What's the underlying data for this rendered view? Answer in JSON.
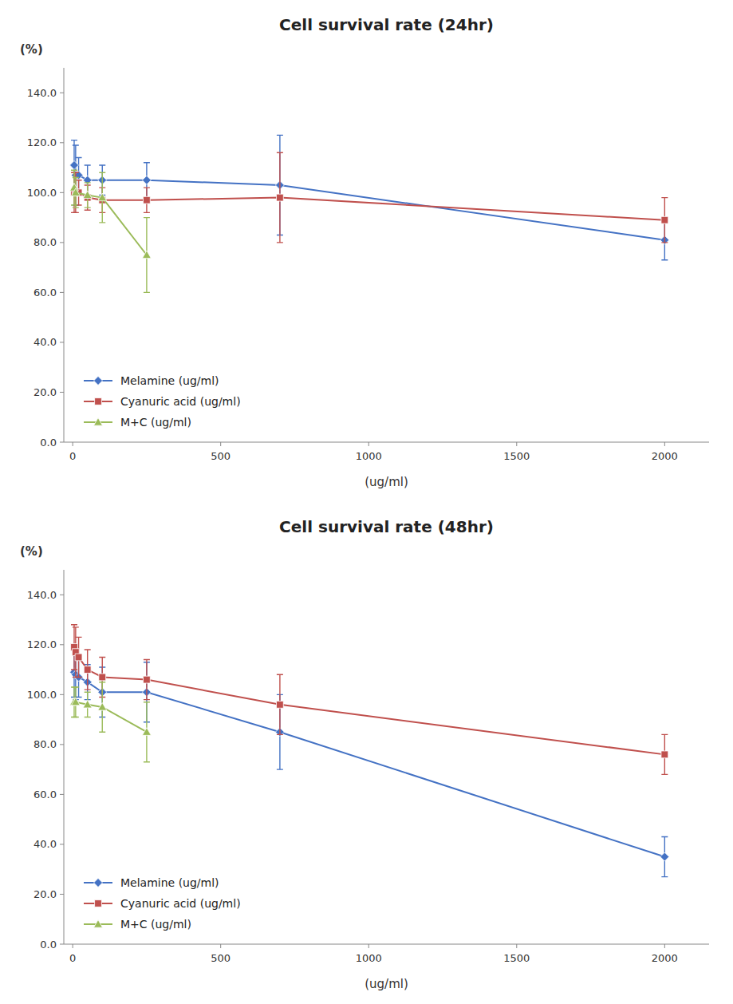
{
  "chart_data": [
    {
      "type": "line",
      "title": "Cell survival rate (24hr)",
      "xlabel": "(ug/ml)",
      "ylabel": "(%)",
      "xlim": [
        -30,
        2150
      ],
      "xticks": [
        0,
        500,
        1000,
        1500,
        2000
      ],
      "ylim": [
        0,
        150
      ],
      "yticks": [
        {
          "value": 0.0,
          "label": "0.0"
        },
        {
          "value": 20.0,
          "label": "20.0"
        },
        {
          "value": 40.0,
          "label": "40.0"
        },
        {
          "value": 60.0,
          "label": "60.0"
        },
        {
          "value": 80.0,
          "label": "80.0"
        },
        {
          "value": 100.0,
          "label": "100.0"
        },
        {
          "value": 120.0,
          "label": "120.0"
        },
        {
          "value": 140.0,
          "label": "140.0"
        }
      ],
      "grid": false,
      "legend": "lower left",
      "series": [
        {
          "name": "Melamine (ug/ml)",
          "color": "#4472C4",
          "marker": "diamond",
          "x": [
            5,
            10,
            20,
            50,
            100,
            250,
            700,
            2000
          ],
          "values": [
            111,
            107,
            107,
            105,
            105,
            105,
            103,
            81
          ],
          "errors": [
            10,
            12,
            7,
            6,
            6,
            7,
            20,
            8
          ]
        },
        {
          "name": "Cyanuric acid (ug/ml)",
          "color": "#C0504D",
          "marker": "square",
          "x": [
            5,
            10,
            20,
            50,
            100,
            250,
            700,
            2000
          ],
          "values": [
            100,
            100,
            100,
            98,
            97,
            97,
            98,
            89
          ],
          "errors": [
            8,
            8,
            5,
            5,
            5,
            5,
            18,
            9
          ]
        },
        {
          "name": "M+C (ug/ml)",
          "color": "#9BBB59",
          "marker": "triangle",
          "x": [
            5,
            10,
            50,
            100,
            250
          ],
          "values": [
            102,
            100,
            99,
            98,
            75
          ],
          "errors": [
            7,
            6,
            5,
            10,
            15
          ]
        }
      ]
    },
    {
      "type": "line",
      "title": "Cell survival rate (48hr)",
      "xlabel": "(ug/ml)",
      "ylabel": "(%)",
      "xlim": [
        -30,
        2150
      ],
      "xticks": [
        0,
        500,
        1000,
        1500,
        2000
      ],
      "ylim": [
        0,
        150
      ],
      "yticks": [
        {
          "value": 0.0,
          "label": "0.0"
        },
        {
          "value": 20.0,
          "label": "20.0"
        },
        {
          "value": 40.0,
          "label": "40.0"
        },
        {
          "value": 60.0,
          "label": "60.0"
        },
        {
          "value": 80.0,
          "label": "80.0"
        },
        {
          "value": 100.0,
          "label": "100.0"
        },
        {
          "value": 120.0,
          "label": "120.0"
        },
        {
          "value": 140.0,
          "label": "140.0"
        }
      ],
      "grid": false,
      "legend": "lower left",
      "series": [
        {
          "name": "Melamine (ug/ml)",
          "color": "#4472C4",
          "marker": "diamond",
          "x": [
            5,
            10,
            20,
            50,
            100,
            250,
            700,
            2000
          ],
          "values": [
            109,
            108,
            107,
            105,
            101,
            101,
            85,
            35
          ],
          "errors": [
            10,
            10,
            8,
            7,
            10,
            12,
            15,
            8
          ]
        },
        {
          "name": "Cyanuric acid (ug/ml)",
          "color": "#C0504D",
          "marker": "square",
          "x": [
            5,
            10,
            20,
            50,
            100,
            250,
            700,
            2000
          ],
          "values": [
            119,
            117,
            115,
            110,
            107,
            106,
            96,
            76
          ],
          "errors": [
            9,
            10,
            8,
            8,
            8,
            8,
            12,
            8
          ]
        },
        {
          "name": "M+C (ug/ml)",
          "color": "#9BBB59",
          "marker": "triangle",
          "x": [
            5,
            10,
            50,
            100,
            250
          ],
          "values": [
            97,
            97,
            96,
            95,
            85
          ],
          "errors": [
            6,
            6,
            5,
            10,
            12
          ]
        }
      ]
    }
  ]
}
